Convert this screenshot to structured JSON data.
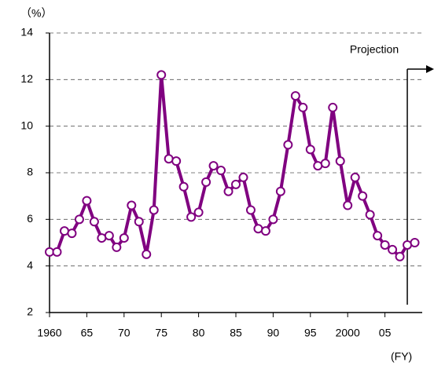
{
  "chart_data": {
    "type": "line",
    "y_label": "（%）",
    "x_label": "(FY)",
    "x": [
      1960,
      1961,
      1962,
      1963,
      1964,
      1965,
      1966,
      1967,
      1968,
      1969,
      1970,
      1971,
      1972,
      1973,
      1974,
      1975,
      1976,
      1977,
      1978,
      1979,
      1980,
      1981,
      1982,
      1983,
      1984,
      1985,
      1986,
      1987,
      1988,
      1989,
      1990,
      1991,
      1992,
      1993,
      1994,
      1995,
      1996,
      1997,
      1998,
      1999,
      2000,
      2001,
      2002,
      2003,
      2004,
      2005,
      2006,
      2007,
      2008,
      2009
    ],
    "values": [
      4.6,
      4.6,
      5.5,
      5.4,
      6.0,
      6.8,
      5.9,
      5.2,
      5.3,
      4.8,
      5.2,
      6.6,
      5.9,
      4.5,
      6.4,
      12.2,
      8.6,
      8.5,
      7.4,
      6.1,
      6.3,
      7.6,
      8.3,
      8.1,
      7.2,
      7.5,
      7.8,
      6.4,
      5.6,
      5.5,
      6.0,
      7.2,
      9.2,
      11.3,
      10.8,
      9.0,
      8.3,
      8.4,
      10.8,
      8.5,
      6.6,
      7.8,
      7.0,
      6.2,
      5.3,
      4.9,
      4.7,
      4.4,
      4.9,
      5.0
    ],
    "color": "#800080",
    "xlim": [
      1960,
      2010
    ],
    "xticks": [
      1960,
      {
        "value": 1965,
        "label": "65"
      },
      {
        "value": 1970,
        "label": "70"
      },
      {
        "value": 1975,
        "label": "75"
      },
      {
        "value": 1980,
        "label": "80"
      },
      {
        "value": 1985,
        "label": "85"
      },
      {
        "value": 1990,
        "label": "90"
      },
      {
        "value": 1995,
        "label": "95"
      },
      2000,
      {
        "value": 2005,
        "label": "05"
      }
    ],
    "ylim": [
      2,
      14
    ],
    "yticks": [
      2,
      4,
      6,
      8,
      10,
      12,
      14
    ],
    "grid": true,
    "annotation": {
      "text": "Projection",
      "x": 2008
    }
  }
}
